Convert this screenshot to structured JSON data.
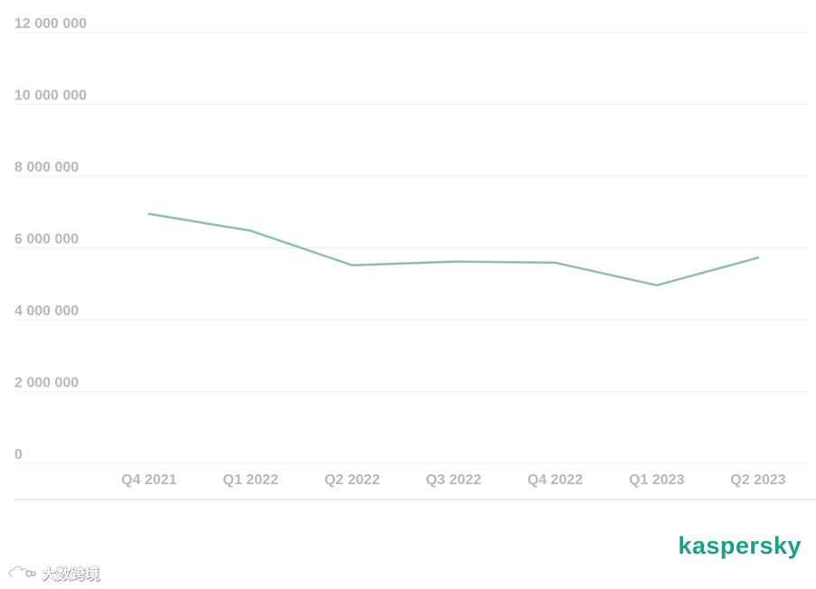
{
  "chart_data": {
    "type": "line",
    "categories": [
      "Q4 2021",
      "Q1 2022",
      "Q2 2022",
      "Q3 2022",
      "Q4 2022",
      "Q1 2023",
      "Q2 2023"
    ],
    "series": [
      {
        "values": [
          6950000,
          6480000,
          5520000,
          5620000,
          5590000,
          4960000,
          5730000
        ]
      }
    ],
    "y_ticks": [
      "12 000 000",
      "10 000 000",
      "8 000 000",
      "6 000 000",
      "4 000 000",
      "2 000 000",
      "0"
    ],
    "ylim": [
      0,
      12000000
    ],
    "grid": true,
    "legend": "none"
  },
  "colors": {
    "line": "#8fc1a3",
    "grid": "#ececec",
    "axis_line": "#cfcfcf",
    "tick_text": "#b8b8b8",
    "brand": "#1d9e85"
  },
  "brand": {
    "logo_text": "kaspersky"
  },
  "watermark": {
    "text": "大数跨境",
    "icon": "cloud-loop-icon"
  }
}
